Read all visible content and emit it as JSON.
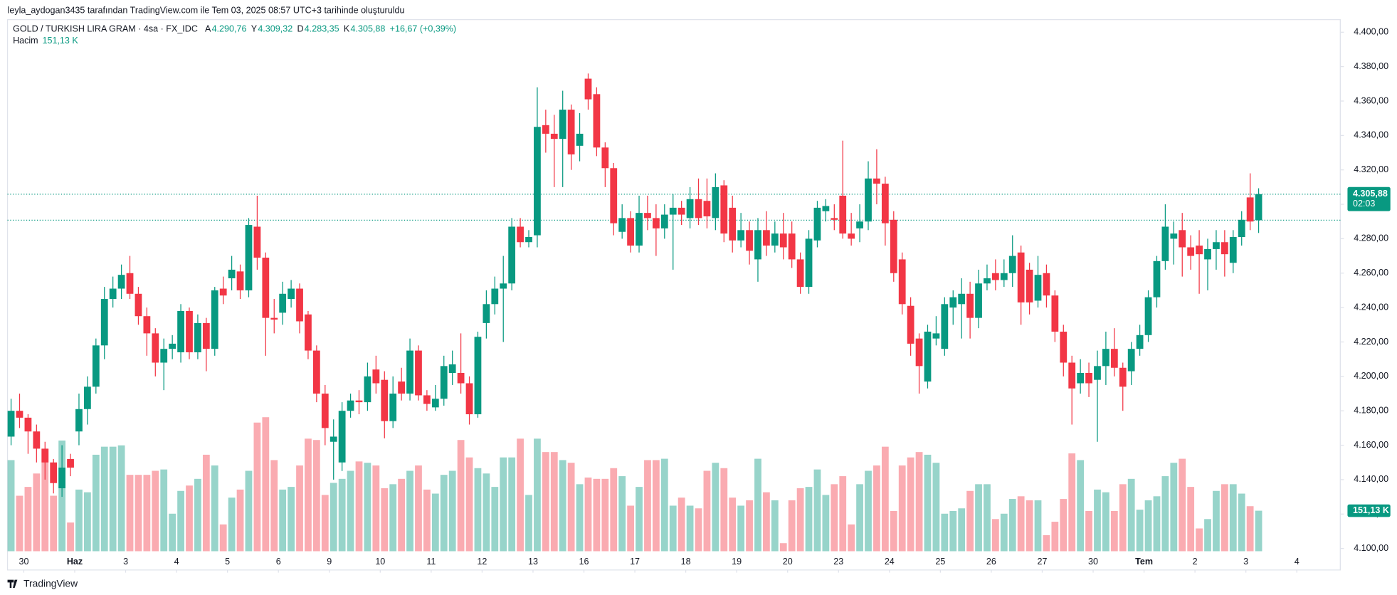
{
  "header": {
    "text": "leyla_aydogan3435 tarafından TradingView.com ile Tem 03, 2025 08:57 UTC+3 tarihinde oluşturuldu"
  },
  "footer": {
    "brand": "TradingView"
  },
  "chart_data": {
    "type": "candlestick",
    "legend": {
      "symbol": "GOLD / TURKISH LIRA GRAM · 4sa · FX_IDC",
      "fields": [
        {
          "key": "A",
          "value": 4290.76,
          "label": "4.290,76"
        },
        {
          "key": "Y",
          "value": 4309.32,
          "label": "4.309,32"
        },
        {
          "key": "D",
          "value": 4283.35,
          "label": "4.283,35"
        },
        {
          "key": "K",
          "value": 4305.88,
          "label": "4.305,88"
        }
      ],
      "change": {
        "value": 16.67,
        "label": "+16,67 (+0,39%)"
      },
      "volume_name": "Hacim",
      "volume_label": "151,13 K"
    },
    "countdown": "02:03",
    "up_color": "#089981",
    "down_color": "#f23645",
    "open": [
      4165,
      4180,
      4176,
      4168,
      4158,
      4150,
      4135,
      4152,
      4168,
      4181,
      4194,
      4218,
      4245,
      4251,
      4260,
      4248,
      4235,
      4225,
      4208,
      4216,
      4214,
      4238,
      4214,
      4231,
      4216,
      4251,
      4257,
      4261,
      4250,
      4287,
      4269,
      4234,
      4237,
      4245,
      4251,
      4236,
      4215,
      4190,
      4162,
      4150,
      4180,
      4186,
      4185,
      4204,
      4198,
      4174,
      4197,
      4190,
      4215,
      4189,
      4182,
      4187,
      4202,
      4202,
      4196,
      4178,
      4231,
      4242,
      4251,
      4254,
      4287,
      4278,
      4282,
      4346,
      4341,
      4338,
      4355,
      4334,
      4373,
      4364,
      4333,
      4321,
      4284,
      4292,
      4276,
      4295,
      4292,
      4286,
      4294,
      4298,
      4292,
      4303,
      4302,
      4292,
      4311,
      4298,
      4279,
      4285,
      4268,
      4285,
      4276,
      4283,
      4283,
      4268,
      4252,
      4279,
      4296,
      4292,
      4305,
      4283,
      4286,
      4290,
      4315,
      4312,
      4291,
      4268,
      4241,
      4222,
      4197,
      4222,
      4216,
      4240,
      4242,
      4248,
      4234,
      4254,
      4260,
      4256,
      4260,
      4272,
      4262,
      4244,
      4260,
      4247,
      4226,
      4208,
      4196,
      4202,
      4198,
      4206,
      4216,
      4205,
      4203,
      4216,
      4224,
      4246,
      4267,
      4280,
      4285,
      4275,
      4276,
      4268,
      4274,
      4278,
      4266,
      4281,
      4304,
      4290.76
    ],
    "high": [
      4187,
      4190,
      4178,
      4172,
      4162,
      4152,
      4160,
      4155,
      4190,
      4200,
      4222,
      4252,
      4258,
      4265,
      4270,
      4252,
      4240,
      4228,
      4222,
      4224,
      4242,
      4240,
      4236,
      4234,
      4252,
      4258,
      4270,
      4265,
      4292,
      4305,
      4272,
      4245,
      4255,
      4256,
      4254,
      4238,
      4218,
      4195,
      4175,
      4185,
      4190,
      4192,
      4208,
      4212,
      4203,
      4200,
      4205,
      4222,
      4218,
      4192,
      4195,
      4212,
      4215,
      4225,
      4200,
      4226,
      4250,
      4258,
      4270,
      4292,
      4292,
      4285,
      4368,
      4355,
      4352,
      4366,
      4358,
      4353,
      4376,
      4368,
      4336,
      4324,
      4300,
      4296,
      4305,
      4305,
      4300,
      4300,
      4306,
      4302,
      4310,
      4315,
      4315,
      4318,
      4314,
      4305,
      4295,
      4290,
      4292,
      4296,
      4290,
      4295,
      4290,
      4272,
      4285,
      4302,
      4303,
      4300,
      4337,
      4295,
      4300,
      4325,
      4332,
      4316,
      4296,
      4272,
      4246,
      4225,
      4230,
      4235,
      4246,
      4250,
      4257,
      4255,
      4262,
      4265,
      4268,
      4268,
      4282,
      4276,
      4266,
      4270,
      4265,
      4250,
      4230,
      4212,
      4210,
      4208,
      4215,
      4226,
      4228,
      4208,
      4220,
      4230,
      4250,
      4270,
      4300,
      4290,
      4295,
      4282,
      4285,
      4280,
      4285,
      4285,
      4285,
      4296,
      4318,
      4309.32
    ],
    "low": [
      4160,
      4170,
      4155,
      4150,
      4140,
      4132,
      4130,
      4142,
      4160,
      4172,
      4190,
      4210,
      4240,
      4245,
      4245,
      4230,
      4212,
      4200,
      4192,
      4210,
      4208,
      4210,
      4210,
      4203,
      4212,
      4242,
      4250,
      4245,
      4246,
      4262,
      4212,
      4225,
      4230,
      4240,
      4225,
      4210,
      4185,
      4160,
      4140,
      4145,
      4176,
      4178,
      4180,
      4190,
      4164,
      4170,
      4186,
      4186,
      4186,
      4180,
      4180,
      4183,
      4195,
      4190,
      4172,
      4176,
      4222,
      4236,
      4220,
      4250,
      4275,
      4275,
      4275,
      4330,
      4310,
      4310,
      4320,
      4325,
      4355,
      4328,
      4310,
      4282,
      4280,
      4272,
      4272,
      4285,
      4270,
      4280,
      4262,
      4288,
      4286,
      4288,
      4286,
      4285,
      4278,
      4272,
      4275,
      4265,
      4255,
      4270,
      4272,
      4268,
      4263,
      4248,
      4248,
      4275,
      4290,
      4285,
      4280,
      4276,
      4278,
      4285,
      4300,
      4276,
      4255,
      4236,
      4212,
      4190,
      4193,
      4218,
      4212,
      4230,
      4222,
      4222,
      4228,
      4250,
      4250,
      4252,
      4252,
      4230,
      4236,
      4240,
      4240,
      4220,
      4200,
      4172,
      4190,
      4188,
      4162,
      4195,
      4200,
      4180,
      4195,
      4212,
      4220,
      4240,
      4262,
      4265,
      4258,
      4262,
      4248,
      4250,
      4262,
      4258,
      4260,
      4276,
      4285,
      4283.35
    ],
    "close": [
      4180,
      4176,
      4168,
      4158,
      4150,
      4138,
      4147,
      4147,
      4181,
      4194,
      4218,
      4245,
      4251,
      4259,
      4248,
      4235,
      4225,
      4208,
      4216,
      4219,
      4238,
      4214,
      4231,
      4216,
      4250,
      4247,
      4262,
      4250,
      4288,
      4269,
      4234,
      4233,
      4248,
      4251,
      4232,
      4215,
      4190,
      4170,
      4165,
      4180,
      4186,
      4185,
      4200,
      4196,
      4174,
      4190,
      4190,
      4215,
      4189,
      4184,
      4187,
      4206,
      4207,
      4196,
      4178,
      4223,
      4242,
      4251,
      4254,
      4287,
      4278,
      4281,
      4345,
      4341,
      4338,
      4355,
      4329,
      4341,
      4361,
      4333,
      4321,
      4289,
      4292,
      4276,
      4295,
      4292,
      4286,
      4294,
      4298,
      4294,
      4303,
      4292,
      4293,
      4310,
      4283,
      4279,
      4285,
      4273,
      4285,
      4276,
      4283,
      4275,
      4268,
      4252,
      4280,
      4298,
      4299,
      4291,
      4283,
      4280,
      4290,
      4315,
      4312,
      4289,
      4260,
      4242,
      4219,
      4206,
      4226,
      4225,
      4242,
      4246,
      4248,
      4234,
      4254,
      4257,
      4256,
      4260,
      4270,
      4243,
      4243,
      4259,
      4247,
      4226,
      4208,
      4193,
      4202,
      4196,
      4206,
      4216,
      4205,
      4194,
      4216,
      4224,
      4246,
      4267,
      4287,
      4283,
      4275,
      4270,
      4271,
      4274,
      4278,
      4271,
      4281,
      4291,
      4290,
      4305.88
    ],
    "volume": [
      340,
      207,
      240,
      290,
      380,
      207,
      413,
      107,
      230,
      220,
      360,
      390,
      390,
      395,
      285,
      285,
      285,
      300,
      305,
      140,
      225,
      245,
      270,
      360,
      320,
      100,
      200,
      230,
      300,
      480,
      500,
      340,
      230,
      240,
      320,
      420,
      415,
      210,
      255,
      270,
      300,
      335,
      330,
      320,
      235,
      250,
      270,
      300,
      320,
      230,
      215,
      285,
      300,
      415,
      350,
      310,
      290,
      240,
      350,
      350,
      420,
      210,
      420,
      370,
      370,
      340,
      330,
      250,
      275,
      270,
      270,
      310,
      280,
      170,
      240,
      340,
      340,
      345,
      170,
      200,
      170,
      160,
      300,
      330,
      310,
      200,
      170,
      190,
      345,
      220,
      190,
      30,
      190,
      235,
      240,
      305,
      210,
      250,
      280,
      100,
      250,
      300,
      320,
      390,
      150,
      320,
      350,
      370,
      360,
      330,
      140,
      150,
      160,
      225,
      250,
      250,
      120,
      140,
      195,
      205,
      190,
      190,
      60,
      110,
      195,
      365,
      340,
      150,
      230,
      220,
      150,
      250,
      270,
      155,
      190,
      205,
      280,
      330,
      345,
      240,
      85,
      120,
      225,
      250,
      250,
      215,
      168,
      151.13
    ],
    "xlim": [
      -0.42,
      156.63
    ],
    "xticks": [
      {
        "value": 1.5,
        "label": "30"
      },
      {
        "value": 7.5,
        "label": "Haz"
      },
      {
        "value": 13.5,
        "label": "3"
      },
      {
        "value": 19.5,
        "label": "4"
      },
      {
        "value": 25.5,
        "label": "5"
      },
      {
        "value": 31.5,
        "label": "6"
      },
      {
        "value": 37.5,
        "label": "9"
      },
      {
        "value": 43.5,
        "label": "10"
      },
      {
        "value": 49.5,
        "label": "11"
      },
      {
        "value": 55.5,
        "label": "12"
      },
      {
        "value": 61.5,
        "label": "13"
      },
      {
        "value": 67.5,
        "label": "16"
      },
      {
        "value": 73.5,
        "label": "17"
      },
      {
        "value": 79.5,
        "label": "18"
      },
      {
        "value": 85.5,
        "label": "19"
      },
      {
        "value": 91.5,
        "label": "20"
      },
      {
        "value": 97.5,
        "label": "23"
      },
      {
        "value": 103.5,
        "label": "24"
      },
      {
        "value": 109.5,
        "label": "25"
      },
      {
        "value": 115.5,
        "label": "26"
      },
      {
        "value": 121.5,
        "label": "27"
      },
      {
        "value": 127.5,
        "label": "30"
      },
      {
        "value": 133.5,
        "label": "Tem"
      },
      {
        "value": 139.5,
        "label": "2"
      },
      {
        "value": 145.5,
        "label": "3"
      },
      {
        "value": 151.5,
        "label": "4"
      }
    ],
    "ylim": [
      4087.5,
      4407.3
    ],
    "yticks": [
      {
        "value": 4100,
        "label": "4.100,00"
      },
      {
        "value": 4120,
        "label": "4.120,00"
      },
      {
        "value": 4140,
        "label": "4.140,00"
      },
      {
        "value": 4160,
        "label": "4.160,00"
      },
      {
        "value": 4180,
        "label": "4.180,00"
      },
      {
        "value": 4200,
        "label": "4.200,00"
      },
      {
        "value": 4220,
        "label": "4.220,00"
      },
      {
        "value": 4240,
        "label": "4.240,00"
      },
      {
        "value": 4260,
        "label": "4.260,00"
      },
      {
        "value": 4280,
        "label": "4.280,00"
      },
      {
        "value": 4300,
        "label": "4.300,00"
      },
      {
        "value": 4320,
        "label": "4.320,00"
      },
      {
        "value": 4340,
        "label": "4.340,00"
      },
      {
        "value": 4360,
        "label": "4.360,00"
      },
      {
        "value": 4380,
        "label": "4.380,00"
      },
      {
        "value": 4400,
        "label": "4.400,00"
      }
    ],
    "grid": false
  }
}
